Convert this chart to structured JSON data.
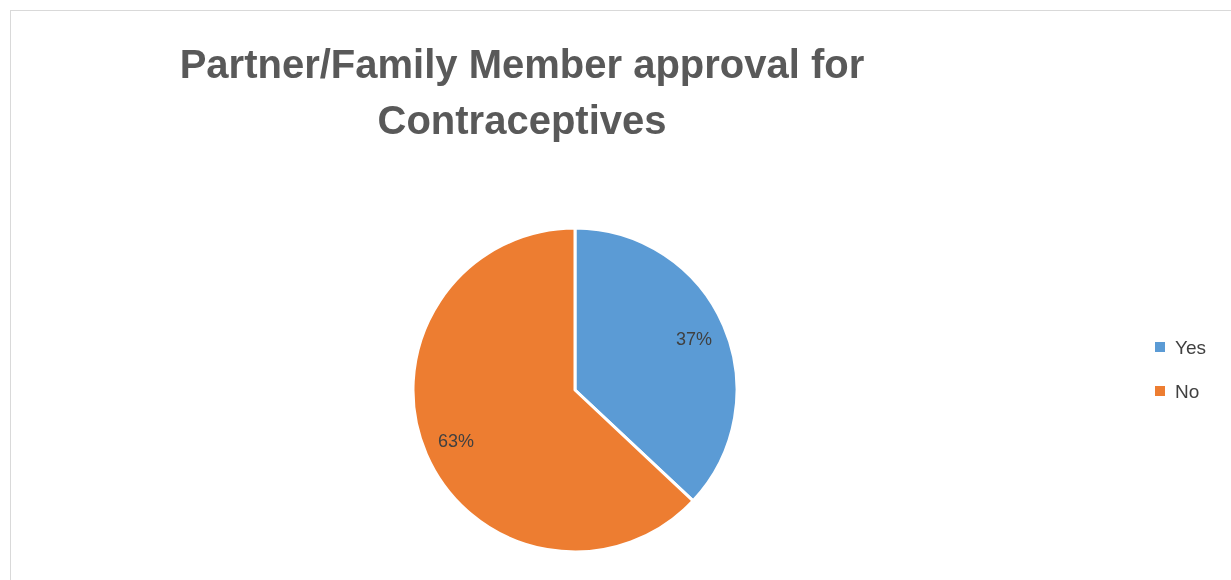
{
  "chart_data": {
    "type": "pie",
    "title": "Partner/Family Member approval for Contraceptives",
    "categories": [
      "Yes",
      "No"
    ],
    "values": [
      37,
      63
    ],
    "colors": [
      "#5b9bd5",
      "#ed7d31"
    ],
    "value_labels": [
      "37%",
      "63%"
    ],
    "legend": "right"
  }
}
